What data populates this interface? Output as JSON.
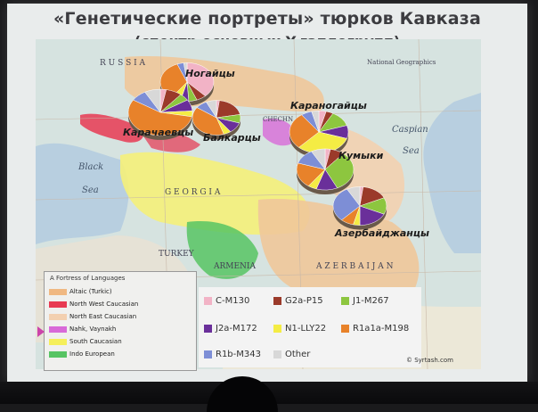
{
  "slide": {
    "title": "«Генетические портреты» тюрков Кавказа",
    "subtitle": "(спектр основных Y-гаплогрупп)"
  },
  "map": {
    "labels": {
      "russia": "R U S S I A",
      "natgeo": "National Geographics",
      "chechnya": "CHECHN",
      "caspian": "Caspian",
      "sea_caspian": "Sea",
      "black": "Black",
      "sea_black": "Sea",
      "georgia": "G E O R G I A",
      "turkey": "TURKEY",
      "armenia": "ARMENIA",
      "azerbaijan": "A Z E R B A I J A N"
    },
    "ethnic_labels": {
      "nogai": "Ногайцы",
      "karachay": "Карачаевцы",
      "balkar": "Балкарцы",
      "karanogai": "Караногайцы",
      "kumyk": "Кумыки",
      "azerbaijani": "Азербайджанцы"
    }
  },
  "language_legend": {
    "title": "A Fortress of Languages",
    "items": [
      {
        "label": "Altaic (Turkic)",
        "color": "#f0b882"
      },
      {
        "label": "North West Caucasian",
        "color": "#e83a52"
      },
      {
        "label": "North East Caucasian",
        "color": "#f3d0b0"
      },
      {
        "label": "Nahk, Vaynakh",
        "color": "#d86ad8"
      },
      {
        "label": "South Caucasian",
        "color": "#f5ef5a"
      },
      {
        "label": "Indo European",
        "color": "#57c463"
      }
    ]
  },
  "haplogroup_legend": {
    "items": [
      {
        "label": "C-M130",
        "color": "#f2b3c6"
      },
      {
        "label": "G2a-P15",
        "color": "#9b3a2a"
      },
      {
        "label": "J1-M267",
        "color": "#8dc63f"
      },
      {
        "label": "J2a-M172",
        "color": "#6a2f9a"
      },
      {
        "label": "N1-LLY22",
        "color": "#f4ec44"
      },
      {
        "label": "R1a1a-M198",
        "color": "#e8822a"
      },
      {
        "label": "R1b-M343",
        "color": "#7d8ed6"
      },
      {
        "label": "Other",
        "color": "#d8d8d8"
      }
    ]
  },
  "credit": "© Syrtash.com",
  "pies": [
    {
      "name": "nogai",
      "slices": [
        0.38,
        0.06,
        0.05,
        0.05,
        0.06,
        0.34,
        0.04,
        0.02
      ]
    },
    {
      "name": "karachay",
      "slices": [
        0.03,
        0.08,
        0.05,
        0.08,
        0.04,
        0.56,
        0.08,
        0.08
      ]
    },
    {
      "name": "balkar",
      "slices": [
        0.02,
        0.2,
        0.08,
        0.1,
        0.05,
        0.4,
        0.08,
        0.07
      ]
    },
    {
      "name": "karanogai",
      "slices": [
        0.04,
        0.04,
        0.12,
        0.1,
        0.32,
        0.28,
        0.06,
        0.04
      ]
    },
    {
      "name": "kumyk",
      "slices": [
        0.03,
        0.08,
        0.32,
        0.12,
        0.05,
        0.2,
        0.12,
        0.08
      ]
    },
    {
      "name": "azerbaijani",
      "slices": [
        0.02,
        0.16,
        0.14,
        0.18,
        0.04,
        0.08,
        0.3,
        0.08
      ]
    }
  ]
}
